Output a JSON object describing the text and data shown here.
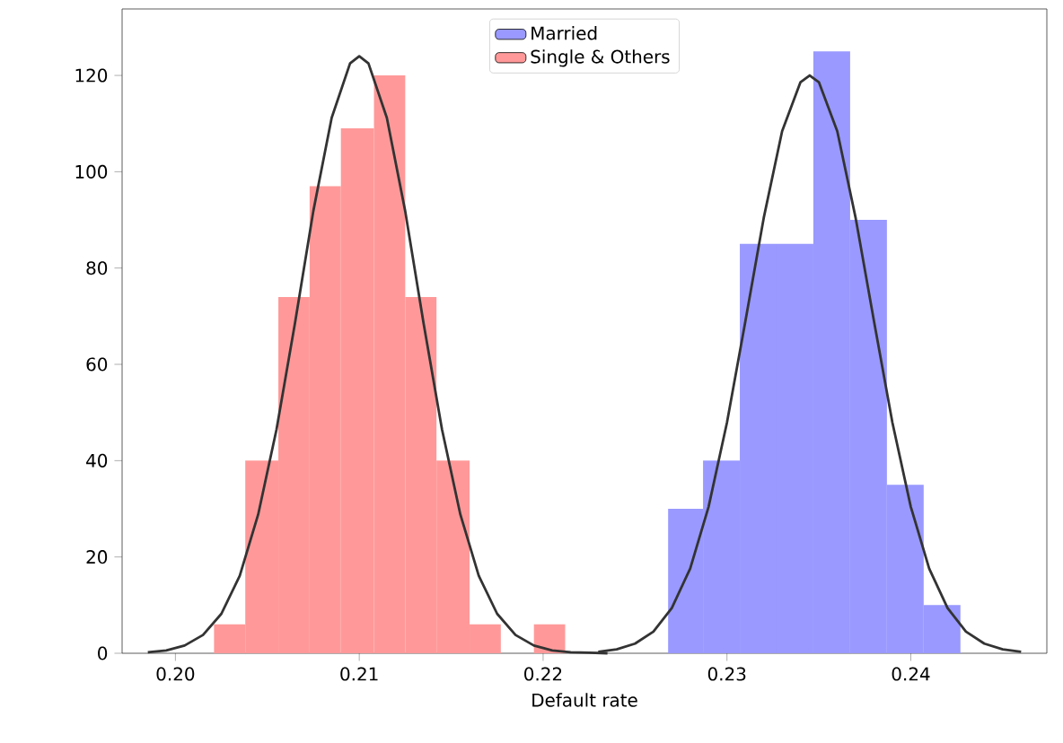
{
  "chart_data": {
    "type": "histogram",
    "xlabel": "Default rate",
    "xlim": [
      0.1971,
      0.2474
    ],
    "ylim": [
      0,
      133.8
    ],
    "xticks": [
      {
        "value": 0.2,
        "label": "0.20"
      },
      {
        "value": 0.21,
        "label": "0.21"
      },
      {
        "value": 0.22,
        "label": "0.22"
      },
      {
        "value": 0.23,
        "label": "0.23"
      },
      {
        "value": 0.24,
        "label": "0.24"
      }
    ],
    "yticks": [
      0,
      20,
      40,
      60,
      80,
      100,
      120
    ],
    "grid": false,
    "legend": "top",
    "series": [
      {
        "name": "Married",
        "color": "#9999ff",
        "bins": [
          0.2268,
          0.2287,
          0.2307,
          0.2327,
          0.2347,
          0.2367,
          0.2387,
          0.2407,
          0.2427
        ],
        "values": [
          30,
          40,
          85,
          85,
          125,
          90,
          35,
          10
        ]
      },
      {
        "name": "Single & Others",
        "color": "#ff9999",
        "bins": [
          0.2021,
          0.2038,
          0.2056,
          0.2073,
          0.209,
          0.2108,
          0.2125,
          0.2142,
          0.216,
          0.2177,
          0.2195,
          0.2212
        ],
        "values": [
          6,
          40,
          74,
          97,
          109,
          120,
          74,
          40,
          6,
          0,
          6
        ]
      },
      {
        "color": "#333333",
        "type": "line",
        "x": [
          0.223,
          0.224,
          0.225,
          0.226,
          0.227,
          0.228,
          0.229,
          0.23,
          0.231,
          0.232,
          0.233,
          0.234,
          0.2345,
          0.235,
          0.236,
          0.237,
          0.238,
          0.239,
          0.24,
          0.241,
          0.242,
          0.243,
          0.244,
          0.245,
          0.246
        ],
        "values": [
          0.3,
          0.8,
          2.0,
          4.5,
          9.4,
          17.6,
          30.4,
          47.9,
          68.9,
          90.4,
          108.4,
          118.6,
          120,
          118.6,
          108.4,
          90.4,
          68.9,
          47.9,
          30.4,
          17.6,
          9.4,
          4.5,
          2.0,
          0.8,
          0.3
        ]
      },
      {
        "color": "#333333",
        "type": "line",
        "x": [
          0.1985,
          0.1995,
          0.2005,
          0.2015,
          0.2025,
          0.2035,
          0.2045,
          0.2055,
          0.2065,
          0.2075,
          0.2085,
          0.2095,
          0.21,
          0.2105,
          0.2115,
          0.2125,
          0.2135,
          0.2145,
          0.2155,
          0.2165,
          0.2175,
          0.2185,
          0.2195,
          0.2205,
          0.2215,
          0.2225,
          0.2235
        ],
        "values": [
          0.2,
          0.6,
          1.6,
          3.8,
          8.2,
          16.1,
          28.8,
          46.5,
          68.5,
          91.8,
          111.2,
          122.5,
          124,
          122.5,
          111.2,
          91.8,
          68.5,
          46.5,
          28.8,
          16.1,
          8.2,
          3.8,
          1.6,
          0.6,
          0.2,
          0.1,
          0.0
        ]
      }
    ]
  }
}
